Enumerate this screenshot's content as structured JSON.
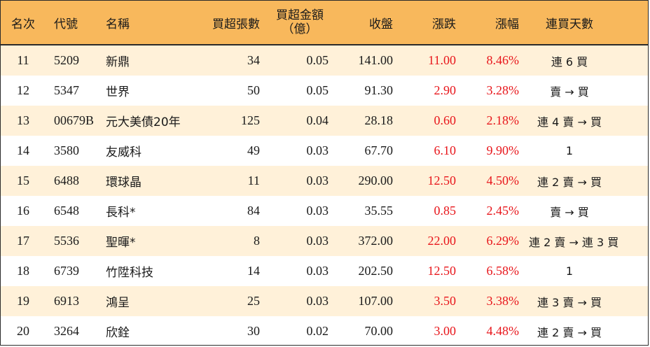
{
  "header": {
    "rank": "名次",
    "code": "代號",
    "name": "名稱",
    "net_lots": "買超張數",
    "net_amount_line1": "買超金額",
    "net_amount_line2": "（億）",
    "close": "收盤",
    "change": "漲跌",
    "change_pct": "漲幅",
    "streak": "連買天數"
  },
  "colors": {
    "header_bg": "#f8b85c",
    "alt_row_bg": "#fff1d9",
    "up_red": "#e8161b"
  },
  "rows": [
    {
      "rank": "11",
      "code": "5209",
      "name": "新鼎",
      "lots": "34",
      "amount": "0.05",
      "close": "141.00",
      "change": "11.00",
      "pct": "8.46%",
      "streak": "連 6 買"
    },
    {
      "rank": "12",
      "code": "5347",
      "name": "世界",
      "lots": "50",
      "amount": "0.05",
      "close": "91.30",
      "change": "2.90",
      "pct": "3.28%",
      "streak": "賣 → 買"
    },
    {
      "rank": "13",
      "code": "00679B",
      "name": "元大美債20年",
      "lots": "125",
      "amount": "0.04",
      "close": "28.18",
      "change": "0.60",
      "pct": "2.18%",
      "streak": "連 4 賣 → 買"
    },
    {
      "rank": "14",
      "code": "3580",
      "name": "友威科",
      "lots": "49",
      "amount": "0.03",
      "close": "67.70",
      "change": "6.10",
      "pct": "9.90%",
      "streak": "1"
    },
    {
      "rank": "15",
      "code": "6488",
      "name": "環球晶",
      "lots": "11",
      "amount": "0.03",
      "close": "290.00",
      "change": "12.50",
      "pct": "4.50%",
      "streak": "連 2 賣 → 買"
    },
    {
      "rank": "16",
      "code": "6548",
      "name": "長科*",
      "lots": "84",
      "amount": "0.03",
      "close": "35.55",
      "change": "0.85",
      "pct": "2.45%",
      "streak": "賣 → 買"
    },
    {
      "rank": "17",
      "code": "5536",
      "name": "聖暉*",
      "lots": "8",
      "amount": "0.03",
      "close": "372.00",
      "change": "22.00",
      "pct": "6.29%",
      "streak": "連 2 賣 → 連 3 買"
    },
    {
      "rank": "18",
      "code": "6739",
      "name": "竹陞科技",
      "lots": "14",
      "amount": "0.03",
      "close": "202.50",
      "change": "12.50",
      "pct": "6.58%",
      "streak": "1"
    },
    {
      "rank": "19",
      "code": "6913",
      "name": "鴻呈",
      "lots": "25",
      "amount": "0.03",
      "close": "107.00",
      "change": "3.50",
      "pct": "3.38%",
      "streak": "連 3 賣 → 買"
    },
    {
      "rank": "20",
      "code": "3264",
      "name": "欣銓",
      "lots": "30",
      "amount": "0.02",
      "close": "70.00",
      "change": "3.00",
      "pct": "4.48%",
      "streak": "連 2 賣 → 買"
    }
  ]
}
